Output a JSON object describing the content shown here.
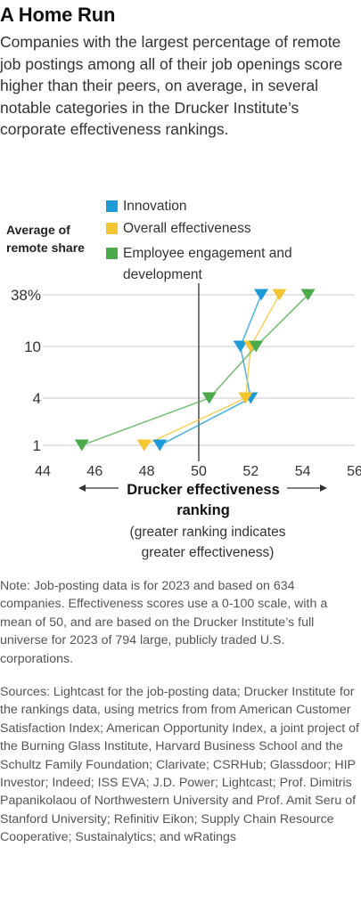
{
  "title": "A Home Run",
  "subtitle": "Companies with the largest percentage of remote job postings among all of their job openings score higher than their peers, on average, in several notable categories in the Drucker Institute’s corporate effectiveness rankings.",
  "chart_data": {
    "type": "line",
    "ylabel": "Average of remote share",
    "y": [
      "1",
      "4",
      "10",
      "38%"
    ],
    "x_axis_label": "Drucker effectiveness ranking",
    "x_axis_note": "(greater ranking indicates greater effectiveness)",
    "xlim": [
      44,
      56
    ],
    "xticks": [
      "44",
      "46",
      "48",
      "50",
      "52",
      "54",
      "56"
    ],
    "reference_line_x": 50,
    "series": [
      {
        "name": "Innovation",
        "color": "#1e9bd7",
        "values": [
          48.5,
          52.0,
          51.6,
          52.4
        ]
      },
      {
        "name": "Overall effectiveness",
        "color": "#f2c531",
        "values": [
          47.9,
          51.8,
          52.0,
          53.1
        ]
      },
      {
        "name": "Employee engagement and development",
        "color": "#4caa4a",
        "values": [
          45.5,
          50.4,
          52.2,
          54.2
        ]
      }
    ],
    "marker": "downward-triangle",
    "legend_position": "top"
  },
  "note": "Note: Job-posting data is for 2023 and based on 634 companies. Effectiveness scores use a 0-100 scale, with a mean of 50, and are based on the Drucker Institute’s full universe for 2023 of 794 large, publicly traded U.S. corporations.",
  "sources": "Sources: Lightcast for the job-posting data; Drucker Institute for the rankings data, using metrics from from American Customer Satisfaction Index; American Opportunity Index, a joint project of the Burning Glass Institute, Harvard Business School and the Schultz Family Foundation; Clarivate; CSRHub; Glassdoor; HIP Investor; Indeed; ISS EVA; J.D. Power; Lightcast; Prof. Dimitris Papanikolaou of Northwestern University and Prof. Amit Seru of Stanford University; Refinitiv Eikon; Supply Chain Resource Cooperative; Sustainalytics; and wRatings"
}
